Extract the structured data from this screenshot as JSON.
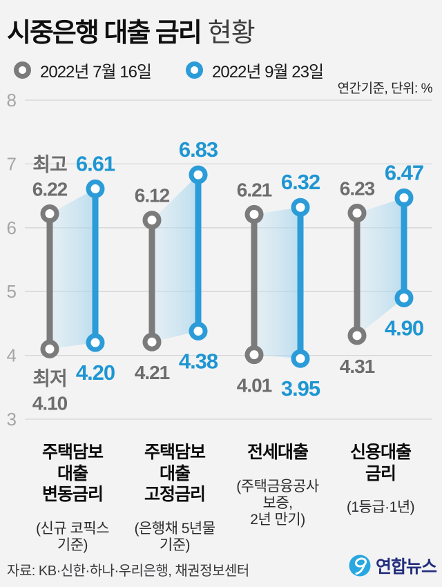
{
  "header": {
    "title_main": "시중은행 대출 금리",
    "title_sub": "현황",
    "unit_note": "연간기준, 단위: %"
  },
  "chart_data": {
    "type": "dumbbell-range",
    "ylim": [
      3,
      8
    ],
    "yticks": [
      8,
      7,
      6,
      5,
      4,
      3
    ],
    "unit": "%",
    "grid": true,
    "annotations": {
      "high_label": "최고",
      "low_label": "최저"
    },
    "series": [
      {
        "name": "2022년 7월 16일",
        "color": "#7b7b7b",
        "value_color": "#6d6d6d"
      },
      {
        "name": "2022년 9월 23일",
        "color": "#2b9cd8",
        "value_color": "#1e96d2"
      }
    ],
    "categories": [
      {
        "label": "주택담보\n대출\n변동금리",
        "note": "(신규 코픽스\n기준)",
        "values": [
          {
            "high": 6.22,
            "low": 4.1
          },
          {
            "high": 6.61,
            "low": 4.2
          }
        ]
      },
      {
        "label": "주택담보\n대출\n고정금리",
        "note": "(은행채 5년물\n기준)",
        "values": [
          {
            "high": 6.12,
            "low": 4.21
          },
          {
            "high": 6.83,
            "low": 4.38
          }
        ]
      },
      {
        "label": "전세대출",
        "note": "(주택금융공사\n보증,\n2년 만기)",
        "values": [
          {
            "high": 6.21,
            "low": 4.01
          },
          {
            "high": 6.32,
            "low": 3.95
          }
        ]
      },
      {
        "label": "신용대출\n금리",
        "note": "(1등급·1년)",
        "values": [
          {
            "high": 6.23,
            "low": 4.31
          },
          {
            "high": 6.47,
            "low": 4.9
          }
        ]
      }
    ]
  },
  "footer": {
    "source": "자료: KB·신한·하나·우리은행, 채권정보센터",
    "logo_text": "연합뉴스",
    "logo_color": "#29a7e1"
  }
}
